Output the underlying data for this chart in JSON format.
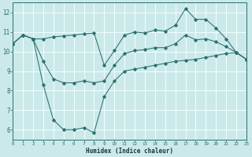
{
  "xlabel": "Humidex (Indice chaleur)",
  "xlim": [
    0,
    23
  ],
  "ylim": [
    5.5,
    12.5
  ],
  "yticks": [
    6,
    7,
    8,
    9,
    10,
    11,
    12
  ],
  "xticks": [
    0,
    1,
    2,
    3,
    4,
    5,
    6,
    7,
    8,
    9,
    10,
    11,
    12,
    13,
    14,
    15,
    16,
    17,
    18,
    19,
    20,
    21,
    22,
    23
  ],
  "bg_color": "#cce9e9",
  "line_color": "#2a7070",
  "grid_color": "#f0ffff",
  "top_y": [
    10.4,
    10.85,
    10.65,
    10.65,
    10.75,
    10.8,
    10.85,
    10.9,
    10.95,
    9.3,
    10.05,
    10.85,
    11.0,
    10.95,
    11.1,
    11.05,
    11.35,
    12.2,
    11.65,
    11.65,
    11.2,
    10.65,
    9.95,
    9.6
  ],
  "mid_y": [
    10.4,
    10.85,
    10.65,
    9.5,
    8.6,
    8.4,
    8.4,
    8.5,
    8.4,
    8.5,
    9.3,
    9.9,
    10.05,
    10.1,
    10.2,
    10.2,
    10.4,
    10.85,
    10.6,
    10.65,
    10.5,
    10.25,
    9.95,
    9.6
  ],
  "bot_y": [
    10.4,
    10.85,
    10.65,
    8.3,
    6.5,
    6.0,
    6.0,
    6.1,
    5.85,
    7.7,
    8.5,
    9.0,
    9.1,
    9.2,
    9.3,
    9.4,
    9.5,
    9.55,
    9.6,
    9.7,
    9.8,
    9.9,
    9.95,
    9.6
  ]
}
